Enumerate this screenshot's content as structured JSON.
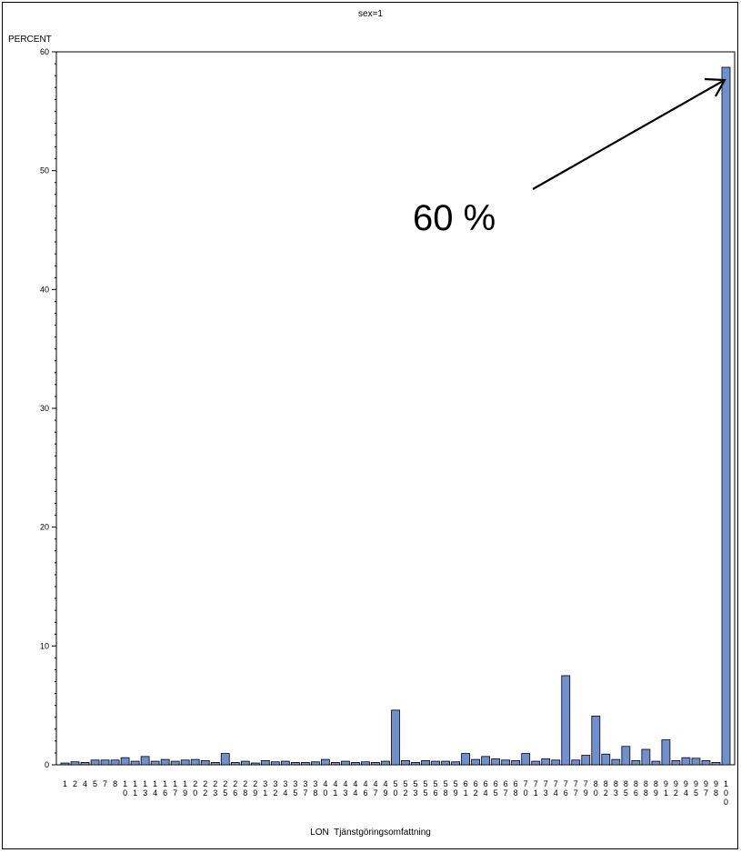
{
  "chart_data": {
    "type": "bar",
    "title": "sex=1",
    "ylabel": "PERCENT",
    "xlabel": "LON  Tjänstgöringsomfattning",
    "ylim": [
      0,
      60
    ],
    "yticks": [
      0,
      10,
      20,
      30,
      40,
      50,
      60
    ],
    "minor_ticks_per_major": 10,
    "grid": false,
    "bar_color": "#6f8fcf",
    "categories": [
      "1",
      "2",
      "4",
      "5",
      "7",
      "8",
      "10",
      "11",
      "13",
      "14",
      "16",
      "17",
      "19",
      "20",
      "22",
      "23",
      "25",
      "26",
      "28",
      "29",
      "31",
      "32",
      "34",
      "35",
      "37",
      "38",
      "40",
      "41",
      "43",
      "44",
      "46",
      "47",
      "49",
      "50",
      "52",
      "53",
      "55",
      "56",
      "58",
      "59",
      "61",
      "62",
      "64",
      "65",
      "67",
      "68",
      "70",
      "71",
      "73",
      "74",
      "76",
      "77",
      "79",
      "80",
      "82",
      "83",
      "85",
      "86",
      "88",
      "89",
      "91",
      "92",
      "94",
      "95",
      "97",
      "98",
      "100"
    ],
    "values": [
      0.15,
      0.25,
      0.2,
      0.4,
      0.4,
      0.4,
      0.6,
      0.3,
      0.7,
      0.3,
      0.45,
      0.3,
      0.4,
      0.45,
      0.35,
      0.2,
      0.95,
      0.2,
      0.3,
      0.15,
      0.35,
      0.25,
      0.3,
      0.2,
      0.2,
      0.25,
      0.45,
      0.2,
      0.3,
      0.2,
      0.25,
      0.2,
      0.3,
      4.6,
      0.35,
      0.2,
      0.35,
      0.3,
      0.3,
      0.25,
      0.95,
      0.45,
      0.7,
      0.5,
      0.4,
      0.35,
      0.95,
      0.3,
      0.5,
      0.4,
      7.5,
      0.4,
      0.8,
      4.1,
      0.9,
      0.45,
      1.55,
      0.35,
      1.3,
      0.3,
      2.1,
      0.35,
      0.6,
      0.55,
      0.35,
      0.2,
      58.7
    ],
    "annotation": {
      "text": "60 %"
    }
  }
}
